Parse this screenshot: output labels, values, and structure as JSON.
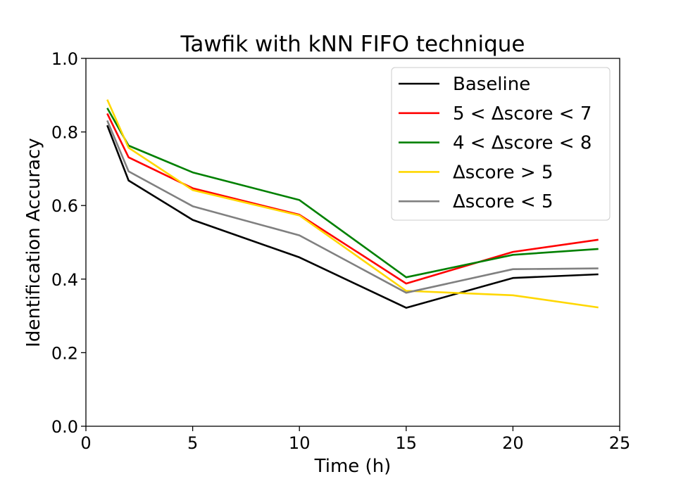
{
  "chart_data": {
    "type": "line",
    "title": "Tawfik with kNN FIFO technique",
    "xlabel": "Time (h)",
    "ylabel": "Identification Accuracy",
    "xlim": [
      0,
      25
    ],
    "ylim": [
      0.0,
      1.0
    ],
    "xticks": [
      0,
      5,
      10,
      15,
      20,
      25
    ],
    "xtick_labels": [
      "0",
      "5",
      "10",
      "15",
      "20",
      "25"
    ],
    "yticks": [
      0.0,
      0.2,
      0.4,
      0.6,
      0.8,
      1.0
    ],
    "ytick_labels": [
      "0.0",
      "0.2",
      "0.4",
      "0.6",
      "0.8",
      "1.0"
    ],
    "grid": false,
    "legend_position": "top-right",
    "x": [
      1,
      2,
      5,
      10,
      15,
      20,
      24
    ],
    "series": [
      {
        "name": "Baseline",
        "color": "#000000",
        "values": [
          0.818,
          0.668,
          0.561,
          0.459,
          0.322,
          0.403,
          0.413
        ]
      },
      {
        "name": "5 < Δscore < 7",
        "color": "#ff0000",
        "values": [
          0.85,
          0.731,
          0.647,
          0.575,
          0.388,
          0.474,
          0.507
        ]
      },
      {
        "name": "4 < Δscore < 8",
        "color": "#008000",
        "values": [
          0.865,
          0.763,
          0.69,
          0.615,
          0.405,
          0.466,
          0.482
        ]
      },
      {
        "name": "Δscore > 5",
        "color": "#ffd700",
        "values": [
          0.888,
          0.757,
          0.642,
          0.573,
          0.368,
          0.356,
          0.323
        ]
      },
      {
        "name": "Δscore < 5",
        "color": "#808080",
        "values": [
          0.831,
          0.693,
          0.598,
          0.519,
          0.363,
          0.427,
          0.429
        ]
      }
    ]
  }
}
